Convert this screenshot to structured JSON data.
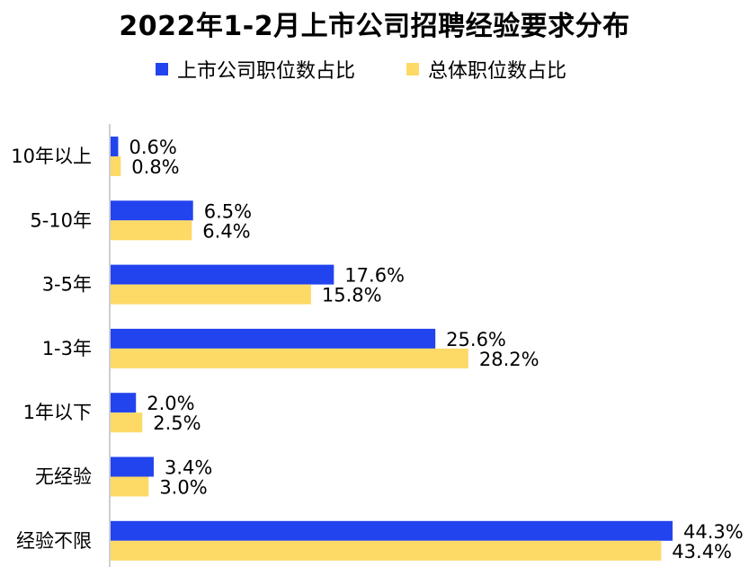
{
  "chart_data": {
    "type": "bar",
    "orientation": "horizontal",
    "title": "2022年1-2月上市公司招聘经验要求分布",
    "categories": [
      "10年以上",
      "5-10年",
      "3-5年",
      "1-3年",
      "1年以下",
      "无经验",
      "经验不限"
    ],
    "series": [
      {
        "name": "上市公司职位数占比",
        "color": "#2244ee",
        "values": [
          0.6,
          6.5,
          17.6,
          25.6,
          2.0,
          3.4,
          44.3
        ],
        "labels": [
          "0.6%",
          "6.5%",
          "17.6%",
          "25.6%",
          "2.0%",
          "3.4%",
          "44.3%"
        ]
      },
      {
        "name": "总体职位数占比",
        "color": "#fdd966",
        "values": [
          0.8,
          6.4,
          15.8,
          28.2,
          2.5,
          3.0,
          43.4
        ],
        "labels": [
          "0.8%",
          "6.4%",
          "15.8%",
          "28.2%",
          "2.5%",
          "3.0%",
          "43.4%"
        ]
      }
    ],
    "xlim": [
      0,
      44.3
    ],
    "xlabel": "",
    "ylabel": "",
    "grid": false,
    "legend_position": "top"
  }
}
